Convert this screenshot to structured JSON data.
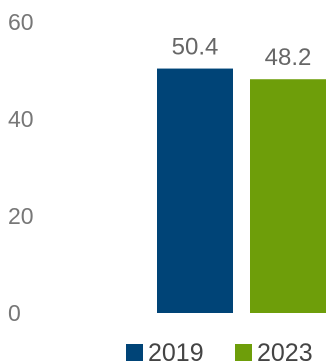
{
  "chart_data": {
    "type": "bar",
    "title": "",
    "xlabel": "",
    "ylabel": "",
    "ylim": [
      0,
      60
    ],
    "yticks": [
      0,
      20,
      40,
      60
    ],
    "grid": false,
    "legend_position": "bottom-right",
    "series": [
      {
        "name": "2019",
        "values": [
          50.4
        ],
        "color": "#004477",
        "label": "50.4"
      },
      {
        "name": "2023",
        "values": [
          48.2
        ],
        "color": "#6e9e0a",
        "label": "48.2"
      }
    ]
  }
}
